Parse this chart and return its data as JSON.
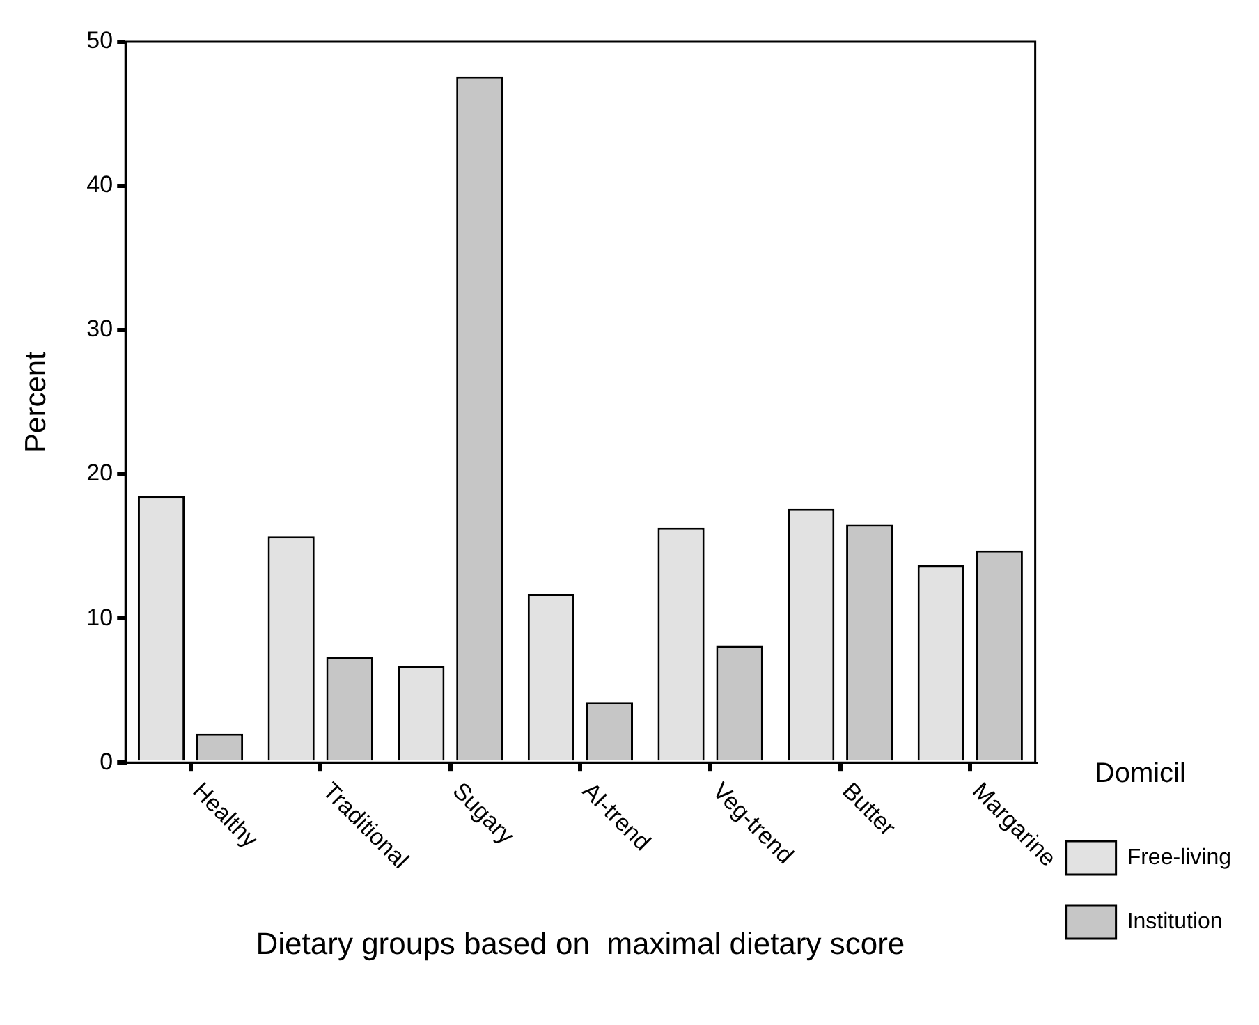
{
  "chart_data": {
    "type": "bar",
    "xlabel": "Dietary groups based on  maximal dietary score",
    "ylabel": "Percent",
    "legend_title": "Domicil",
    "categories": [
      "Healthy",
      "Traditional",
      "Sugary",
      "AI-trend",
      "Veg-trend",
      "Butter",
      "Margarine"
    ],
    "series": [
      {
        "name": "Free-living",
        "color": "#e2e2e2",
        "values": [
          18.5,
          15.7,
          6.7,
          11.7,
          16.3,
          17.6,
          13.7
        ]
      },
      {
        "name": "Institution",
        "color": "#c6c6c6",
        "values": [
          2.0,
          7.3,
          47.6,
          4.2,
          8.1,
          16.5,
          14.7
        ]
      }
    ],
    "ylim": [
      0,
      50
    ],
    "yticks": [
      0,
      10,
      20,
      30,
      40,
      50
    ],
    "grid": false,
    "legend": "right"
  }
}
